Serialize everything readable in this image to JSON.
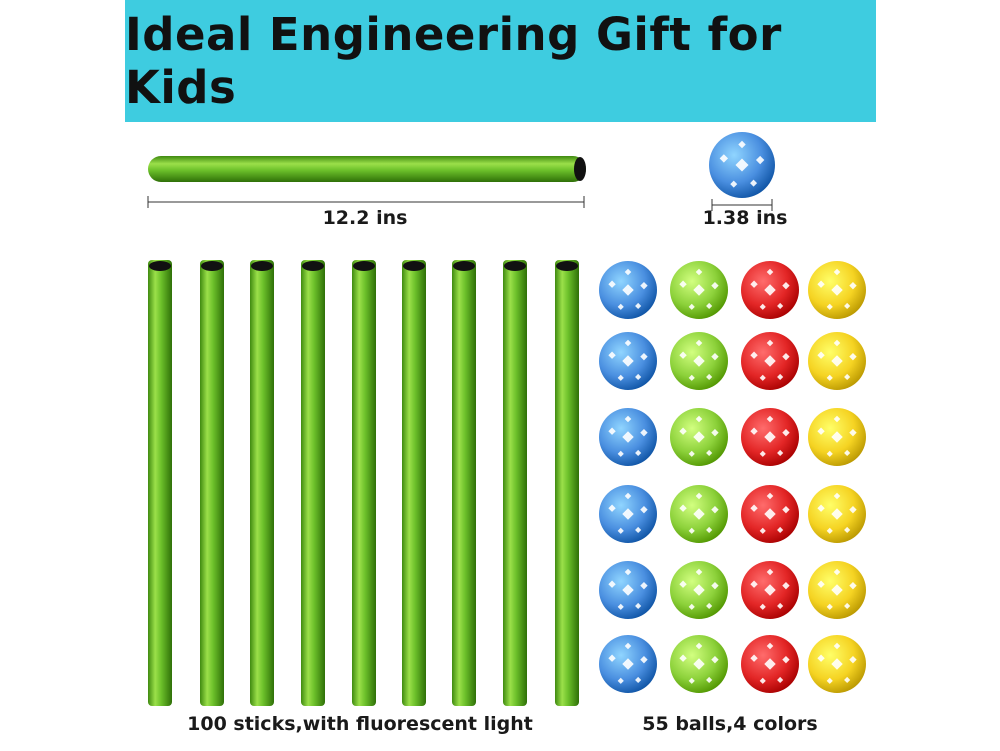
{
  "banner": {
    "title": "Ideal Engineering Gift for Kids"
  },
  "dimensions": {
    "stick_length": "12.2 ins",
    "ball_diameter": "1.38 ins"
  },
  "captions": {
    "sticks": "100 sticks,with fluorescent light",
    "balls": "55 balls,4 colors"
  },
  "colors": {
    "banner": "#3ecce0",
    "stick": "#6cc02a",
    "ball_blue": "#4a8fe0",
    "ball_green": "#8cd13a",
    "ball_red": "#e32626",
    "ball_yellow": "#f5d322"
  },
  "ball_columns": [
    "blue",
    "green",
    "red",
    "yellow"
  ]
}
